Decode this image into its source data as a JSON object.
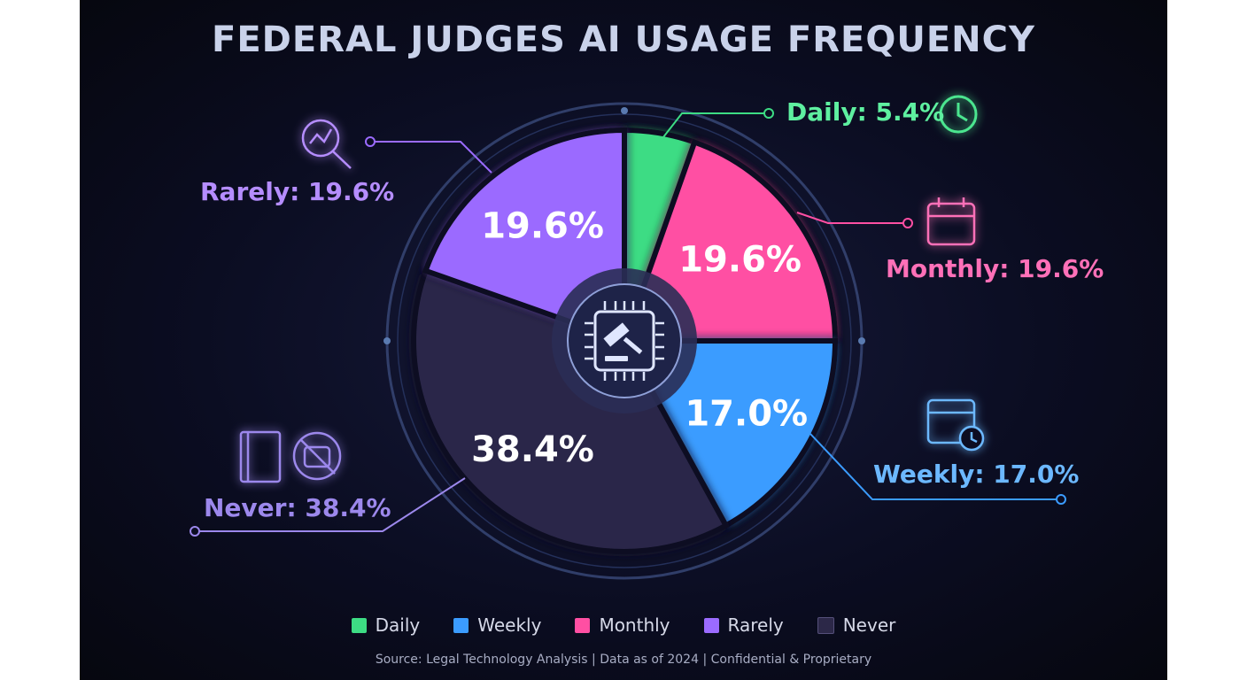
{
  "chart_data": {
    "type": "pie",
    "title": "FEDERAL JUDGES AI USAGE FREQUENCY",
    "start": "top",
    "direction": "clockwise",
    "slices": [
      {
        "label": "Daily",
        "value": 5.4,
        "display": "5.4%",
        "callout": "Daily: 5.4%",
        "color": "#3ddc84",
        "text_color": "#5ef0a0"
      },
      {
        "label": "Monthly",
        "value": 19.6,
        "display": "19.6%",
        "callout": "Monthly: 19.6%",
        "color": "#ff4fa3",
        "text_color": "#ff70b8"
      },
      {
        "label": "Weekly",
        "value": 17.0,
        "display": "17.0%",
        "callout": "Weekly: 17.0%",
        "color": "#3b9cff",
        "text_color": "#6cb8ff"
      },
      {
        "label": "Never",
        "value": 38.4,
        "display": "38.4%",
        "callout": "Never: 38.4%",
        "color": "#2c2848",
        "text_color": "#9c88ec"
      },
      {
        "label": "Rarely",
        "value": 19.6,
        "display": "19.6%",
        "callout": "Rarely: 19.6%",
        "color": "#9b6bff",
        "text_color": "#b58dff"
      }
    ],
    "legend": {
      "placement": "bottom",
      "entries": [
        {
          "label": "Daily",
          "color": "#3ddc84"
        },
        {
          "label": "Weekly",
          "color": "#3b9cff"
        },
        {
          "label": "Monthly",
          "color": "#ff4fa3"
        },
        {
          "label": "Rarely",
          "color": "#9b6bff"
        },
        {
          "label": "Never",
          "color": "#2c2848"
        }
      ]
    },
    "center_icon": "gavel-chip-icon"
  },
  "footer": {
    "source": "Source: Legal Technology Analysis | Data as of 2024 | Confidential & Proprietary"
  }
}
